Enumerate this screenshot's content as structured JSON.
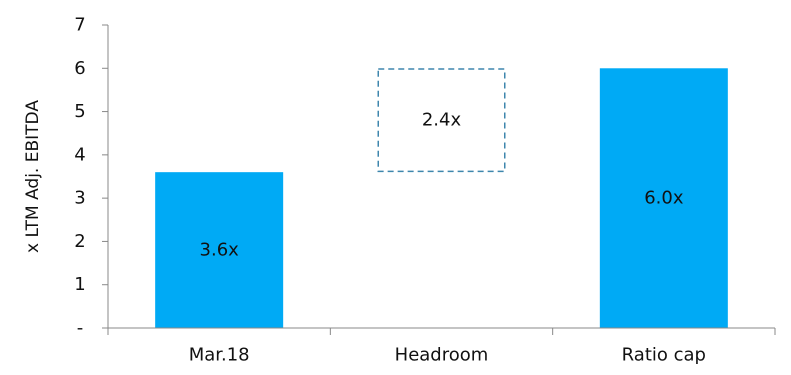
{
  "chart_data": {
    "type": "bar",
    "categories": [
      "Mar.18",
      "Headroom",
      "Ratio cap"
    ],
    "bars": [
      {
        "category": "Mar.18",
        "base": 0,
        "value": 3.6,
        "style": "solid",
        "label": "3.6x"
      },
      {
        "category": "Headroom",
        "base": 3.6,
        "value": 2.4,
        "style": "dashed-outline",
        "label": "2.4x"
      },
      {
        "category": "Ratio cap",
        "base": 0,
        "value": 6.0,
        "style": "solid",
        "label": "6.0x"
      }
    ],
    "title": "",
    "xlabel": "",
    "ylabel": "x LTM Adj. EBITDA",
    "ylim": [
      0,
      7
    ],
    "yticks": [
      0,
      1,
      2,
      3,
      4,
      5,
      6,
      7
    ],
    "ytick_labels": [
      "-",
      "1",
      "2",
      "3",
      "4",
      "5",
      "6",
      "7"
    ],
    "grid": false,
    "legend": "none",
    "colors": {
      "bar_fill": "#00AAF5",
      "dashed_outline": "#3E86AD",
      "axis": "#888888",
      "text": "#111111"
    }
  }
}
